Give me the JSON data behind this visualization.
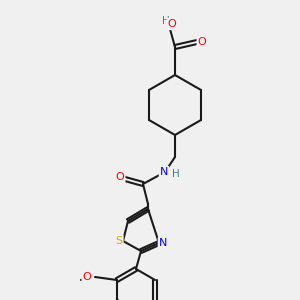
{
  "bg_color": "#f0f0f0",
  "fig_width": 3.0,
  "fig_height": 3.0,
  "dpi": 100,
  "bond_color": "#1a1a1a",
  "bond_width": 1.5,
  "atom_colors": {
    "O": "#ff0000",
    "N": "#0000ff",
    "S": "#ccaa00",
    "H": "#408080",
    "C": "#1a1a1a"
  },
  "font_size": 7.5
}
